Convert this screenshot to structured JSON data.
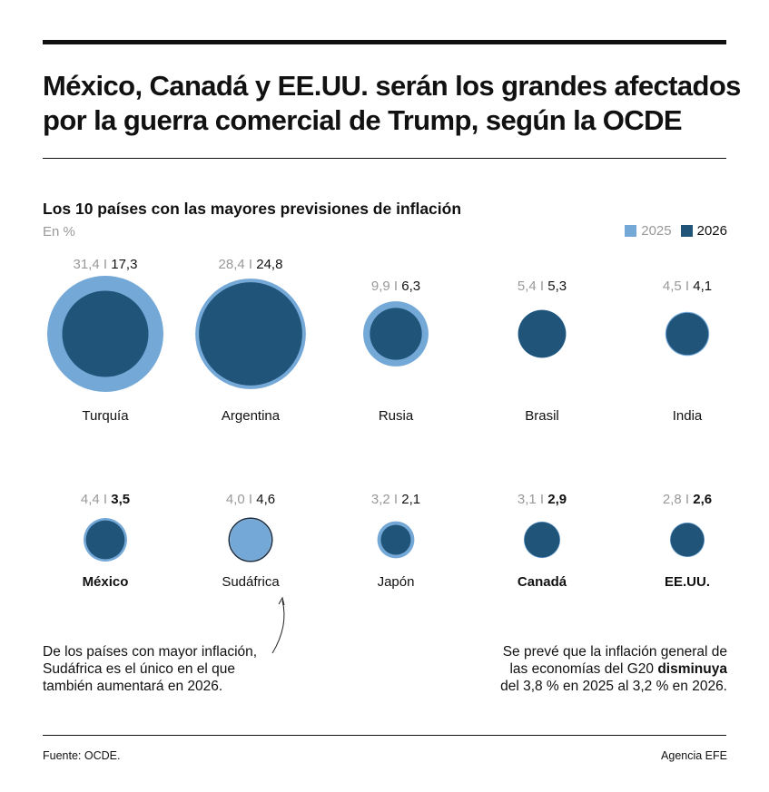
{
  "title_line1": "México, Canadá y EE.UU. serán los grandes afectados",
  "title_line2": "por la guerra comercial de Trump, según la OCDE",
  "chart_data": {
    "type": "bubble",
    "title": "Los 10 países con las mayores previsiones de inflación",
    "unit": "En %",
    "legend": [
      {
        "name": "2025",
        "color": "#74a8d7"
      },
      {
        "name": "2026",
        "color": "#215479"
      }
    ],
    "legend_position": "top-right",
    "series_names": [
      "2025",
      "2026"
    ],
    "countries": [
      {
        "name": "Turquía",
        "v2025": 31.4,
        "v2026": 17.3,
        "label2025": "31,4",
        "label2026": "17,3",
        "highlight": false
      },
      {
        "name": "Argentina",
        "v2025": 28.4,
        "v2026": 24.8,
        "label2025": "28,4",
        "label2026": "24,8",
        "highlight": false
      },
      {
        "name": "Rusia",
        "v2025": 9.9,
        "v2026": 6.3,
        "label2025": "9,9",
        "label2026": "6,3",
        "highlight": false
      },
      {
        "name": "Brasil",
        "v2025": 5.4,
        "v2026": 5.3,
        "label2025": "5,4",
        "label2026": "5,3",
        "highlight": false
      },
      {
        "name": "India",
        "v2025": 4.5,
        "v2026": 4.1,
        "label2025": "4,5",
        "label2026": "4,1",
        "highlight": false
      },
      {
        "name": "México",
        "v2025": 4.4,
        "v2026": 3.5,
        "label2025": "4,4",
        "label2026": "3,5",
        "highlight": true
      },
      {
        "name": "Sudáfrica",
        "v2025": 4.0,
        "v2026": 4.6,
        "label2025": "4,0",
        "label2026": "4,6",
        "highlight": false
      },
      {
        "name": "Japón",
        "v2025": 3.2,
        "v2026": 2.1,
        "label2025": "3,2",
        "label2026": "2,1",
        "highlight": false
      },
      {
        "name": "Canadá",
        "v2025": 3.1,
        "v2026": 2.9,
        "label2025": "3,1",
        "label2026": "2,9",
        "highlight": true
      },
      {
        "name": "EE.UU.",
        "v2025": 2.8,
        "v2026": 2.6,
        "label2025": "2,8",
        "label2026": "2,6",
        "highlight": true
      }
    ]
  },
  "note_left": [
    "De los países con mayor inflación,",
    "Sudáfrica es el único en el que",
    "también aumentará en 2026."
  ],
  "note_right": {
    "line1": "Se prevé que la inflación general de",
    "line2_pre": "las economías del G20 ",
    "line2_bold": "disminuya",
    "line3": "del 3,8 % en 2025 al 3,2 % en 2026."
  },
  "source": "Fuente: OCDE.",
  "credit": "Agencia EFE"
}
